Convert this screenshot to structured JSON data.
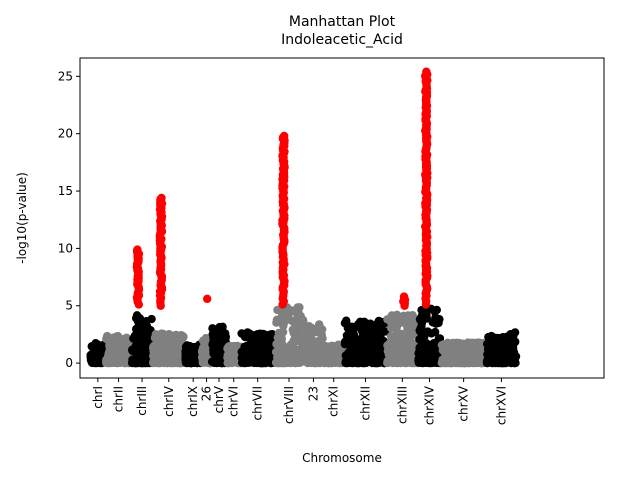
{
  "chart_data": {
    "type": "scatter",
    "title": "Manhattan Plot",
    "subtitle": "Indoleacetic_Acid",
    "xlabel": "Chromosome",
    "ylabel": "-log10(p-value)",
    "ylim": [
      -1.3,
      26.6
    ],
    "yticks": [
      0,
      5,
      10,
      15,
      20,
      25
    ],
    "grid": false,
    "legend": "none",
    "colors": {
      "odd": "#000000",
      "even": "#808080",
      "significant": "#ff0000"
    },
    "significance_threshold": 5,
    "x_range": [
      0,
      547
    ],
    "chromosomes": [
      {
        "label": "chrI",
        "start": 0,
        "end": 17,
        "color": "black",
        "peak": 1.8
      },
      {
        "label": "chrII",
        "start": 17,
        "end": 45,
        "color": "gray",
        "peak": 2.4
      },
      {
        "label": "chrIII",
        "start": 45,
        "end": 68,
        "color": "black",
        "peak": 4.2
      },
      {
        "label": "chrIV",
        "start": 68,
        "end": 103,
        "color": "gray",
        "peak": 2.6
      },
      {
        "label": "chrIX",
        "start": 103,
        "end": 121,
        "color": "black",
        "peak": 1.6
      },
      {
        "label": "26",
        "start": 121,
        "end": 132,
        "color": "gray",
        "peak": 2.2
      },
      {
        "label": "chrV",
        "start": 132,
        "end": 148,
        "color": "black",
        "peak": 3.2
      },
      {
        "label": "chrVI",
        "start": 148,
        "end": 164,
        "color": "gray",
        "peak": 1.5
      },
      {
        "label": "chrVII",
        "start": 164,
        "end": 200,
        "color": "black",
        "peak": 2.7
      },
      {
        "label": "chrVIII",
        "start": 200,
        "end": 232,
        "color": "gray",
        "peak": 4.9
      },
      {
        "label": "23",
        "start": 232,
        "end": 253,
        "color": "gray",
        "peak": 3.4
      },
      {
        "label": "chrXI",
        "start": 253,
        "end": 276,
        "color": "gray",
        "peak": 1.6
      },
      {
        "label": "chrXII",
        "start": 276,
        "end": 322,
        "color": "black",
        "peak": 3.7
      },
      {
        "label": "chrXIII",
        "start": 322,
        "end": 356,
        "color": "gray",
        "peak": 4.3
      },
      {
        "label": "chrXIV",
        "start": 356,
        "end": 381,
        "color": "black",
        "peak": 4.8
      },
      {
        "label": "chrXV",
        "start": 381,
        "end": 430,
        "color": "gray",
        "peak": 1.8
      },
      {
        "label": "chrXVI",
        "start": 430,
        "end": 463,
        "color": "black",
        "peak": 2.7
      }
    ],
    "significant_peaks": [
      {
        "chromosome": "chrIII",
        "x": 52,
        "ymin": 5.1,
        "ymax": 9.9
      },
      {
        "chromosome": "chrIV",
        "x": 77,
        "ymin": 5.0,
        "ymax": 14.4
      },
      {
        "chromosome": "26",
        "x": 127,
        "ymin": 5.6,
        "ymax": 5.6
      },
      {
        "chromosome": "chrVIII",
        "x": 210,
        "ymin": 5.1,
        "ymax": 19.8
      },
      {
        "chromosome": "chrXIII",
        "x": 341,
        "ymin": 5.0,
        "ymax": 5.8
      },
      {
        "chromosome": "chrXIV",
        "x": 365,
        "ymin": 5.1,
        "ymax": 25.4
      }
    ]
  }
}
